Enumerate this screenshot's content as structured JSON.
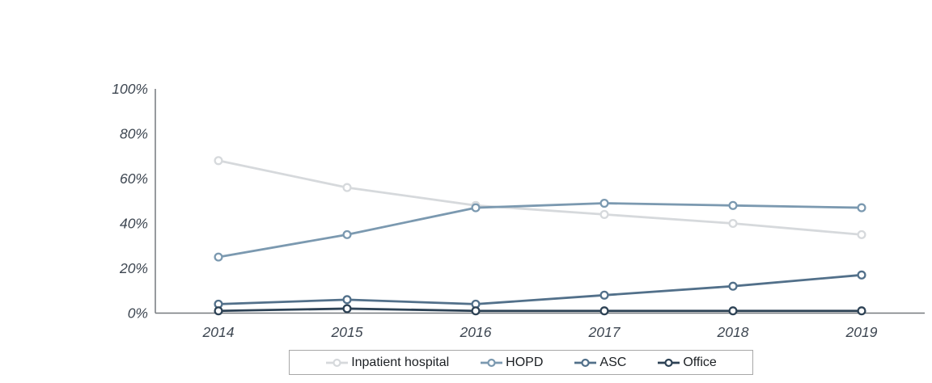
{
  "chart_data": {
    "type": "line",
    "x_labels": [
      "2014",
      "2015",
      "2016",
      "2017",
      "2018",
      "2019"
    ],
    "series": [
      {
        "name": "Inpatient hospital",
        "color": "#d6d9dc",
        "values": [
          68,
          56,
          48,
          44,
          40,
          35
        ]
      },
      {
        "name": "HOPD",
        "color": "#7b99b0",
        "values": [
          25,
          35,
          47,
          49,
          48,
          47
        ]
      },
      {
        "name": "ASC",
        "color": "#52708a",
        "values": [
          4,
          6,
          4,
          8,
          12,
          17
        ]
      },
      {
        "name": "Office",
        "color": "#2d4255",
        "values": [
          1,
          2,
          1,
          1,
          1,
          1
        ]
      }
    ],
    "title": "",
    "xlabel": "",
    "ylabel": "",
    "ylim": [
      0,
      100
    ],
    "yticks": [
      0,
      20,
      40,
      60,
      80,
      100
    ],
    "yticklabels": [
      "0%",
      "20%",
      "40%",
      "60%",
      "80%",
      "100%"
    ],
    "grid": false,
    "legend_position": "bottom",
    "marker": "circle-open",
    "axis_color": "#75797e",
    "tick_label_color": "#3d4651",
    "legend_border_color": "#a8a8a8"
  }
}
